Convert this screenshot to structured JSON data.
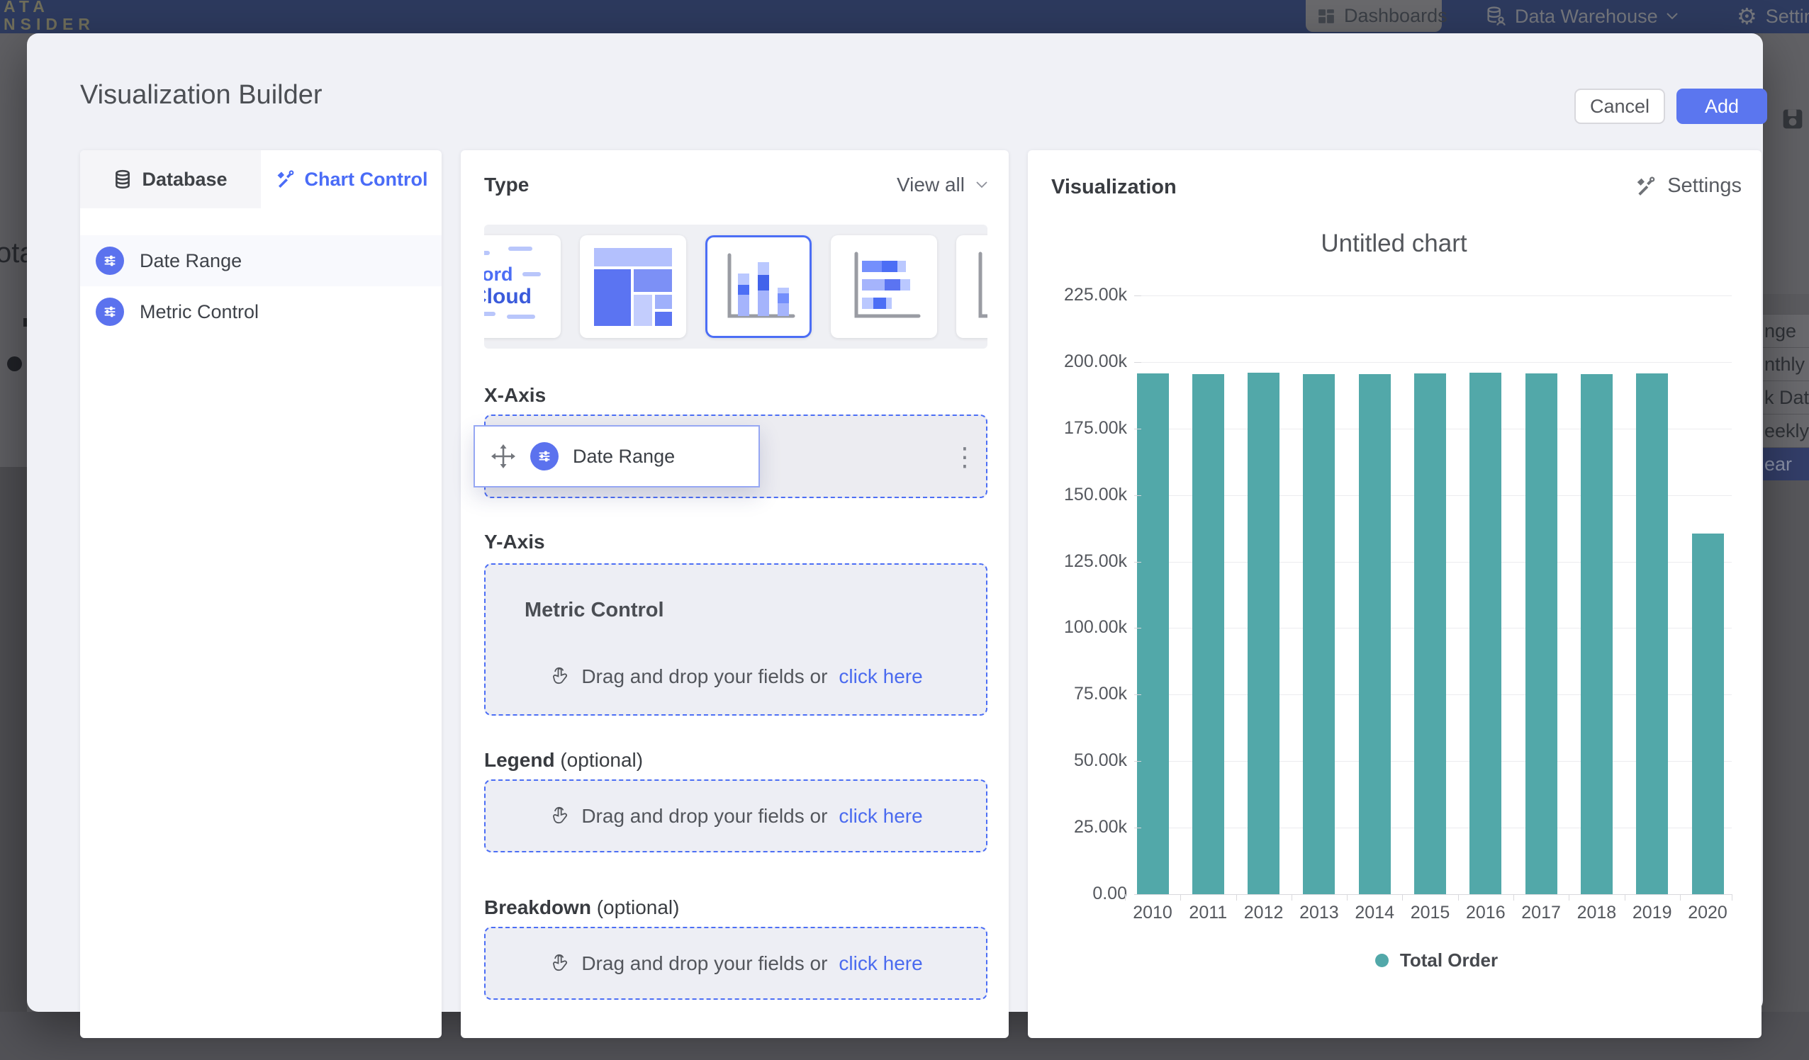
{
  "background": {
    "topbar": {
      "brand_line1": "ATA",
      "brand_line2": "NSIDER",
      "dashboards_label": "Dashboards",
      "data_warehouse_label": "Data Warehouse",
      "settings_label": "Settings"
    },
    "left_fragment_text": "ota",
    "right_dropdown": {
      "items": [
        {
          "label": "nge",
          "selected": false
        },
        {
          "label": "nthly",
          "selected": false
        },
        {
          "label": "k Date",
          "selected": false
        },
        {
          "label": "eekly",
          "selected": false
        },
        {
          "label": "ear",
          "selected": true
        }
      ]
    }
  },
  "modal": {
    "title": "Visualization Builder",
    "cancel_label": "Cancel",
    "add_label": "Add",
    "left_panel": {
      "tabs": [
        {
          "label": "Database",
          "active": false
        },
        {
          "label": "Chart Control",
          "active": true
        }
      ],
      "fields": [
        {
          "label": "Date Range",
          "highlighted": true
        },
        {
          "label": "Metric Control",
          "highlighted": false
        }
      ]
    },
    "builder": {
      "type_label": "Type",
      "view_all_label": "View all",
      "chart_types": [
        "word-cloud",
        "treemap",
        "stacked-column",
        "stacked-bar",
        "histogram"
      ],
      "selected_type_index": 2,
      "word_cloud_words": [
        "Word",
        "Cloud"
      ],
      "x_axis": {
        "label": "X-Axis",
        "ghost_label": "Date Range",
        "chip_label": "Date Range"
      },
      "y_axis": {
        "label": "Y-Axis",
        "zone_title": "Metric Control"
      },
      "legend_section": {
        "label": "Legend",
        "suffix": "(optional)"
      },
      "breakdown_section": {
        "label": "Breakdown",
        "suffix": "(optional)"
      },
      "drop_hint": {
        "text": "Drag and drop your fields or",
        "link": "click here"
      }
    },
    "visualization": {
      "panel_title": "Visualization",
      "settings_label": "Settings",
      "chart_title": "Untitled chart"
    }
  },
  "chart_data": {
    "type": "bar",
    "title": "Untitled chart",
    "categories": [
      "2010",
      "2011",
      "2012",
      "2013",
      "2014",
      "2015",
      "2016",
      "2017",
      "2018",
      "2019",
      "2020"
    ],
    "series": [
      {
        "name": "Total Order",
        "values": [
          195600,
          195400,
          195900,
          195500,
          195400,
          195600,
          195900,
          195600,
          195500,
          195600,
          135600
        ]
      }
    ],
    "bar_color": "#52a8a9",
    "ylim": [
      0,
      225000
    ],
    "ytick_step": 25000,
    "ytick_labels": [
      "0.00",
      "25.00k",
      "50.00k",
      "75.00k",
      "100.00k",
      "125.00k",
      "150.00k",
      "175.00k",
      "200.00k",
      "225.00k"
    ],
    "xlabel": "",
    "ylabel": "",
    "grid": true,
    "legend_position": "bottom"
  },
  "colors": {
    "accent_blue": "#4c6ef5",
    "add_button": "#5b76ef",
    "field_icon": "#5b72ee",
    "bar_teal": "#52a8a9",
    "topbar_navy": "#2d3a5e"
  }
}
